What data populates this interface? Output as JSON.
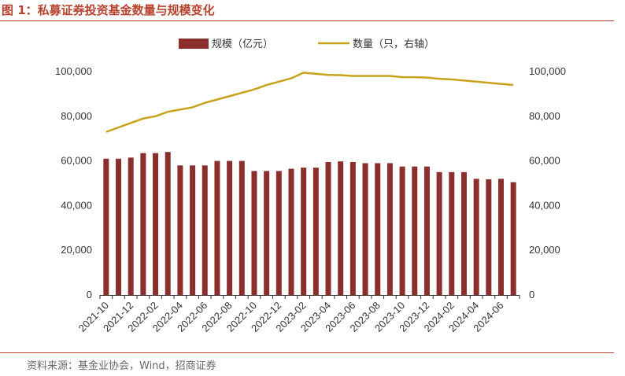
{
  "figure": {
    "title": "图 1：私募证券投资基金数量与规模变化",
    "source": "资料来源：基金业协会，Wind，招商证券"
  },
  "colors": {
    "bar": "#8b2f2d",
    "line": "#c8a21a",
    "accent": "#b8432f"
  },
  "chart_data": {
    "type": "bar",
    "categories": [
      "2021-10",
      "2021-11",
      "2021-12",
      "2022-01",
      "2022-02",
      "2022-03",
      "2022-04",
      "2022-05",
      "2022-06",
      "2022-07",
      "2022-08",
      "2022-09",
      "2022-10",
      "2022-11",
      "2022-12",
      "2023-01",
      "2023-02",
      "2023-03",
      "2023-04",
      "2023-05",
      "2023-06",
      "2023-07",
      "2023-08",
      "2023-09",
      "2023-10",
      "2023-11",
      "2023-12",
      "2024-01",
      "2024-02",
      "2024-03",
      "2024-04",
      "2024-05",
      "2024-06",
      "2024-07"
    ],
    "x_tick_labels": [
      "2021-10",
      "2021-12",
      "2022-02",
      "2022-04",
      "2022-06",
      "2022-08",
      "2022-10",
      "2022-12",
      "2023-02",
      "2023-04",
      "2023-06",
      "2023-08",
      "2023-10",
      "2023-12",
      "2024-02",
      "2024-04",
      "2024-06"
    ],
    "series": [
      {
        "name": "规模（亿元）",
        "type": "bar",
        "axis": "left",
        "values": [
          61000,
          61000,
          61500,
          63500,
          63500,
          64000,
          58000,
          58000,
          58000,
          60000,
          60000,
          60000,
          55500,
          55500,
          55500,
          56500,
          57000,
          57000,
          59500,
          59800,
          59500,
          59000,
          59000,
          59000,
          57500,
          57500,
          57500,
          55000,
          55000,
          55000,
          52000,
          51800,
          52000,
          50500
        ]
      },
      {
        "name": "数量（只，右轴）",
        "type": "line",
        "axis": "right",
        "values": [
          73000,
          75000,
          77000,
          79000,
          80000,
          82000,
          83000,
          84000,
          86000,
          87500,
          89000,
          90500,
          92000,
          94000,
          95500,
          97000,
          99500,
          99000,
          98500,
          98400,
          98000,
          98000,
          98000,
          98000,
          97500,
          97500,
          97300,
          96800,
          96500,
          96000,
          95500,
          95000,
          94500,
          94000
        ]
      }
    ],
    "ylim_left": [
      0,
      100000
    ],
    "ylim_right": [
      0,
      100000
    ],
    "y_ticks": [
      "0",
      "20,000",
      "40,000",
      "60,000",
      "80,000",
      "100,000"
    ],
    "legend_position": "top-center",
    "grid": false
  }
}
